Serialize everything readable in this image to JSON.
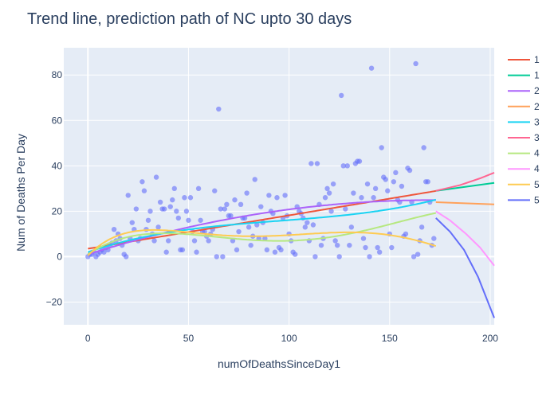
{
  "chart_data": {
    "type": "scatter",
    "title": "Trend line, prediction path of NC upto 30 days",
    "xlabel": "numOfDeathsSinceDay1",
    "ylabel": "Num of Deaths Per Day",
    "xlim": [
      -12,
      202
    ],
    "ylim": [
      -30,
      92
    ],
    "xticks": [
      0,
      50,
      100,
      150,
      200
    ],
    "yticks": [
      -20,
      0,
      20,
      40,
      60,
      80
    ],
    "grid": true,
    "legend_position": "right",
    "points": [
      [
        0,
        0
      ],
      [
        1,
        1
      ],
      [
        2,
        1
      ],
      [
        3,
        2
      ],
      [
        4,
        0
      ],
      [
        5,
        1
      ],
      [
        6,
        2
      ],
      [
        7,
        3
      ],
      [
        8,
        2
      ],
      [
        9,
        4
      ],
      [
        10,
        3
      ],
      [
        11,
        5
      ],
      [
        12,
        6
      ],
      [
        13,
        12
      ],
      [
        14,
        7
      ],
      [
        15,
        10
      ],
      [
        16,
        8
      ],
      [
        17,
        5
      ],
      [
        18,
        1
      ],
      [
        19,
        0
      ],
      [
        20,
        27
      ],
      [
        21,
        8
      ],
      [
        22,
        15
      ],
      [
        23,
        12
      ],
      [
        24,
        21
      ],
      [
        25,
        7
      ],
      [
        26,
        8
      ],
      [
        27,
        33
      ],
      [
        28,
        29
      ],
      [
        29,
        12
      ],
      [
        30,
        16
      ],
      [
        31,
        20
      ],
      [
        32,
        10
      ],
      [
        33,
        7
      ],
      [
        34,
        35
      ],
      [
        35,
        13
      ],
      [
        36,
        24
      ],
      [
        37,
        21
      ],
      [
        38,
        21
      ],
      [
        39,
        2
      ],
      [
        40,
        7
      ],
      [
        41,
        22
      ],
      [
        42,
        25
      ],
      [
        43,
        30
      ],
      [
        44,
        20
      ],
      [
        45,
        17
      ],
      [
        46,
        3
      ],
      [
        47,
        3
      ],
      [
        48,
        26
      ],
      [
        49,
        20
      ],
      [
        50,
        16
      ],
      [
        51,
        26
      ],
      [
        52,
        11
      ],
      [
        53,
        7
      ],
      [
        54,
        2
      ],
      [
        55,
        30
      ],
      [
        56,
        16
      ],
      [
        57,
        11
      ],
      [
        58,
        11
      ],
      [
        59,
        9
      ],
      [
        60,
        7
      ],
      [
        61,
        10
      ],
      [
        62,
        12
      ],
      [
        63,
        29
      ],
      [
        64,
        0
      ],
      [
        65,
        65
      ],
      [
        66,
        21
      ],
      [
        67,
        0
      ],
      [
        68,
        21
      ],
      [
        69,
        23
      ],
      [
        70,
        18
      ],
      [
        71,
        18
      ],
      [
        72,
        7
      ],
      [
        73,
        25
      ],
      [
        74,
        3
      ],
      [
        75,
        11
      ],
      [
        76,
        23
      ],
      [
        77,
        17
      ],
      [
        78,
        17
      ],
      [
        79,
        28
      ],
      [
        80,
        13
      ],
      [
        81,
        5
      ],
      [
        82,
        9
      ],
      [
        83,
        34
      ],
      [
        84,
        14
      ],
      [
        85,
        8
      ],
      [
        86,
        22
      ],
      [
        87,
        15
      ],
      [
        88,
        8
      ],
      [
        89,
        3
      ],
      [
        90,
        27
      ],
      [
        91,
        20
      ],
      [
        92,
        19
      ],
      [
        93,
        2
      ],
      [
        94,
        26
      ],
      [
        95,
        4
      ],
      [
        96,
        3
      ],
      [
        97,
        17
      ],
      [
        98,
        27
      ],
      [
        99,
        18
      ],
      [
        100,
        10
      ],
      [
        101,
        7
      ],
      [
        102,
        2
      ],
      [
        103,
        1
      ],
      [
        104,
        22
      ],
      [
        105,
        20
      ],
      [
        106,
        19
      ],
      [
        107,
        17
      ],
      [
        108,
        13
      ],
      [
        109,
        15
      ],
      [
        110,
        7
      ],
      [
        111,
        41
      ],
      [
        112,
        14
      ],
      [
        113,
        0
      ],
      [
        114,
        41
      ],
      [
        115,
        23
      ],
      [
        116,
        5
      ],
      [
        117,
        8
      ],
      [
        118,
        26
      ],
      [
        119,
        30
      ],
      [
        120,
        28
      ],
      [
        121,
        20
      ],
      [
        122,
        32
      ],
      [
        123,
        7
      ],
      [
        124,
        5
      ],
      [
        125,
        0
      ],
      [
        126,
        71
      ],
      [
        127,
        40
      ],
      [
        128,
        21
      ],
      [
        129,
        40
      ],
      [
        130,
        5
      ],
      [
        131,
        13
      ],
      [
        132,
        28
      ],
      [
        133,
        41
      ],
      [
        134,
        42
      ],
      [
        135,
        42
      ],
      [
        136,
        26
      ],
      [
        137,
        8
      ],
      [
        138,
        4
      ],
      [
        139,
        32
      ],
      [
        140,
        0
      ],
      [
        141,
        83
      ],
      [
        142,
        26
      ],
      [
        143,
        30
      ],
      [
        144,
        4
      ],
      [
        145,
        2
      ],
      [
        146,
        48
      ],
      [
        147,
        35
      ],
      [
        148,
        34
      ],
      [
        149,
        29
      ],
      [
        150,
        10
      ],
      [
        151,
        4
      ],
      [
        152,
        33
      ],
      [
        153,
        37
      ],
      [
        154,
        25
      ],
      [
        155,
        24
      ],
      [
        156,
        31
      ],
      [
        157,
        9
      ],
      [
        158,
        10
      ],
      [
        159,
        39
      ],
      [
        160,
        38
      ],
      [
        161,
        24
      ],
      [
        162,
        0
      ],
      [
        163,
        85
      ],
      [
        164,
        1
      ],
      [
        165,
        7
      ],
      [
        166,
        13
      ],
      [
        167,
        48
      ],
      [
        168,
        33
      ],
      [
        169,
        33
      ],
      [
        170,
        24
      ],
      [
        171,
        5
      ],
      [
        172,
        8
      ]
    ],
    "series": [
      {
        "name": "1",
        "color": "#EF553B",
        "kind": "fit",
        "degree": 1,
        "coef": [
          3.5,
          0.147
        ]
      },
      {
        "name": "1",
        "color": "#00CC96",
        "kind": "pred",
        "degree": 1,
        "coef": [
          3.5,
          0.147
        ]
      },
      {
        "name": "2",
        "color": "#AB63FA",
        "kind": "fit",
        "degree": 2,
        "coef": [
          1.0,
          0.28,
          -0.00082
        ]
      },
      {
        "name": "2",
        "color": "#FFA15A",
        "kind": "pred",
        "degree": 2,
        "coef": [
          1.0,
          0.28,
          -0.00082
        ]
      },
      {
        "name": "3",
        "color": "#19D3F3",
        "kind": "fit",
        "degree": 3,
        "coef": [
          2.0,
          0.3,
          -0.00245,
          8.6e-06
        ]
      },
      {
        "name": "3",
        "color": "#FF6692",
        "kind": "pred",
        "degree": 3,
        "coef": [
          2.0,
          0.3,
          -0.00245,
          8.6e-06
        ]
      },
      {
        "name": "4",
        "color": "#B6E880",
        "kind": "fit",
        "degree": 4,
        "coef": [
          1.0,
          0.6,
          -0.0126,
          9.35e-05,
          -2.15e-07
        ]
      },
      {
        "name": "4",
        "color": "#FF97FF",
        "kind": "pred",
        "degree": 4,
        "coef": [
          1.0,
          0.6,
          -0.0126,
          9.35e-05,
          -2.15e-07
        ]
      },
      {
        "name": "5",
        "color": "#FECB52",
        "kind": "fit",
        "degree": 5,
        "coef": [
          0.5,
          0.9,
          -0.0248,
          0.000281,
          -1.38e-06,
          2.4e-09
        ]
      },
      {
        "name": "5",
        "color": "#636EFA",
        "kind": "pred",
        "degree": 5,
        "coef": [
          0.5,
          0.9,
          -0.0248,
          0.000281,
          -1.38e-06,
          2.4e-09
        ]
      }
    ],
    "fit_range": [
      0,
      173
    ],
    "pred_range": [
      173,
      202
    ],
    "custom_pred": {
      "1": [
        [
          173,
          29
        ],
        [
          202,
          32.5
        ]
      ],
      "2": [
        [
          173,
          24
        ],
        [
          202,
          23
        ]
      ],
      "3": [
        [
          173,
          29
        ],
        [
          185,
          31.5
        ],
        [
          195,
          34.5
        ],
        [
          202,
          37
        ]
      ],
      "4": [
        [
          173,
          20
        ],
        [
          180,
          16
        ],
        [
          188,
          10
        ],
        [
          195,
          4
        ],
        [
          202,
          -4
        ]
      ],
      "5": [
        [
          173,
          17
        ],
        [
          180,
          11
        ],
        [
          187,
          3
        ],
        [
          194,
          -9
        ],
        [
          202,
          -27
        ]
      ]
    },
    "colors": {
      "plot_bg": "#E5ECF6",
      "paper_bg": "#FFFFFF",
      "grid": "#FFFFFF",
      "marker": "#636EFA",
      "text": "#2a3f5f"
    }
  }
}
